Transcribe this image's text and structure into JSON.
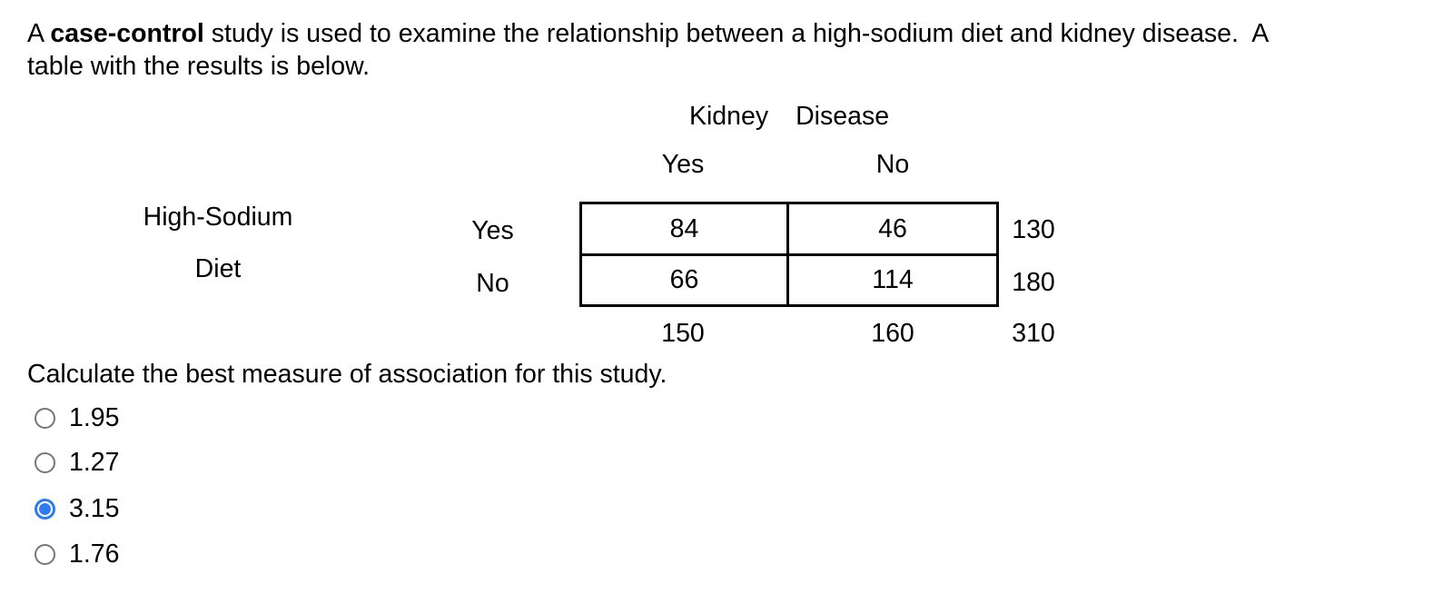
{
  "question": {
    "intro_prefix": "A ",
    "intro_bold": "case-control",
    "intro_rest": " study is used to examine the relationship between a high-sodium diet and kidney disease.  A",
    "intro_line2": "table with the results is below.",
    "prompt": "Calculate the best measure of association for this study."
  },
  "table": {
    "title_word1": "Kidney",
    "title_word2": "Disease",
    "col_headers": [
      "Yes",
      "No"
    ],
    "row_group_label_line1": "High-Sodium",
    "row_group_label_line2": "Diet",
    "row_headers": [
      "Yes",
      "No"
    ],
    "cells": [
      [
        "84",
        "46"
      ],
      [
        "66",
        "114"
      ]
    ],
    "row_totals": [
      "130",
      "180"
    ],
    "col_totals": [
      "150",
      "160"
    ],
    "grand_total": "310"
  },
  "options": [
    {
      "label": "1.95",
      "selected": false
    },
    {
      "label": "1.27",
      "selected": false
    },
    {
      "label": "3.15",
      "selected": true
    },
    {
      "label": "1.76",
      "selected": false
    }
  ],
  "icons": {
    "radio_unselected": "radio-icon",
    "radio_selected": "radio-selected-icon"
  },
  "colors": {
    "accent_radio_selected": "#2e7bf0",
    "radio_unselected_ring": "#767676",
    "text": "#000000",
    "background": "#ffffff"
  }
}
